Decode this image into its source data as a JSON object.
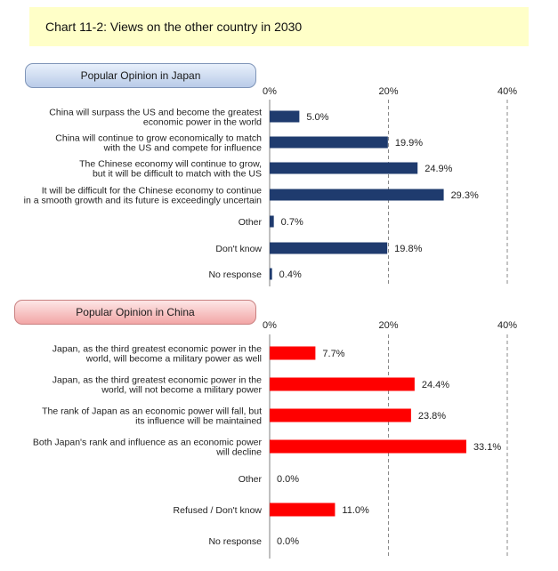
{
  "title": "Chart 11-2: Views on the other country in 2030",
  "chart_data": [
    {
      "type": "bar",
      "title": "Popular Opinion in Japan",
      "orientation": "horizontal",
      "xlim": [
        0,
        40
      ],
      "ticks": [
        "0%",
        "20%",
        "40%"
      ],
      "bar_color": "#1f3b6e",
      "categories": [
        [
          "China will surpass the US and become the greatest",
          "economic power in the world"
        ],
        [
          "China will continue to grow economically to match",
          "with the US and compete for influence"
        ],
        [
          "The Chinese economy will continue to grow,",
          "but it will be difficult to match with the US"
        ],
        [
          "It will be difficult for the Chinese economy to continue",
          "in a smooth growth and its future is exceedingly uncertain"
        ],
        [
          "Other"
        ],
        [
          "Don't know"
        ],
        [
          "No response"
        ]
      ],
      "values": [
        5.0,
        19.9,
        24.9,
        29.3,
        0.7,
        19.8,
        0.4
      ],
      "labels": [
        "5.0%",
        "19.9%",
        "24.9%",
        "29.3%",
        "0.7%",
        "19.8%",
        "0.4%"
      ]
    },
    {
      "type": "bar",
      "title": "Popular Opinion in China",
      "orientation": "horizontal",
      "xlim": [
        0,
        40
      ],
      "ticks": [
        "0%",
        "20%",
        "40%"
      ],
      "bar_color": "#ff0000",
      "categories": [
        [
          "Japan, as the third greatest economic power in the",
          "world, will become a military power as well"
        ],
        [
          "Japan, as the third greatest economic power in the",
          "world, will not become a military power"
        ],
        [
          "The rank of Japan as an economic power will fall, but",
          "its influence will be maintained"
        ],
        [
          "Both Japan's rank and influence as an economic power",
          "will decline"
        ],
        [
          "Other"
        ],
        [
          "Refused / Don't know"
        ],
        [
          "No response"
        ]
      ],
      "values": [
        7.7,
        24.4,
        23.8,
        33.1,
        0.0,
        11.0,
        0.0
      ],
      "labels": [
        "7.7%",
        "24.4%",
        "23.8%",
        "33.1%",
        "0.0%",
        "11.0%",
        "0.0%"
      ]
    }
  ]
}
